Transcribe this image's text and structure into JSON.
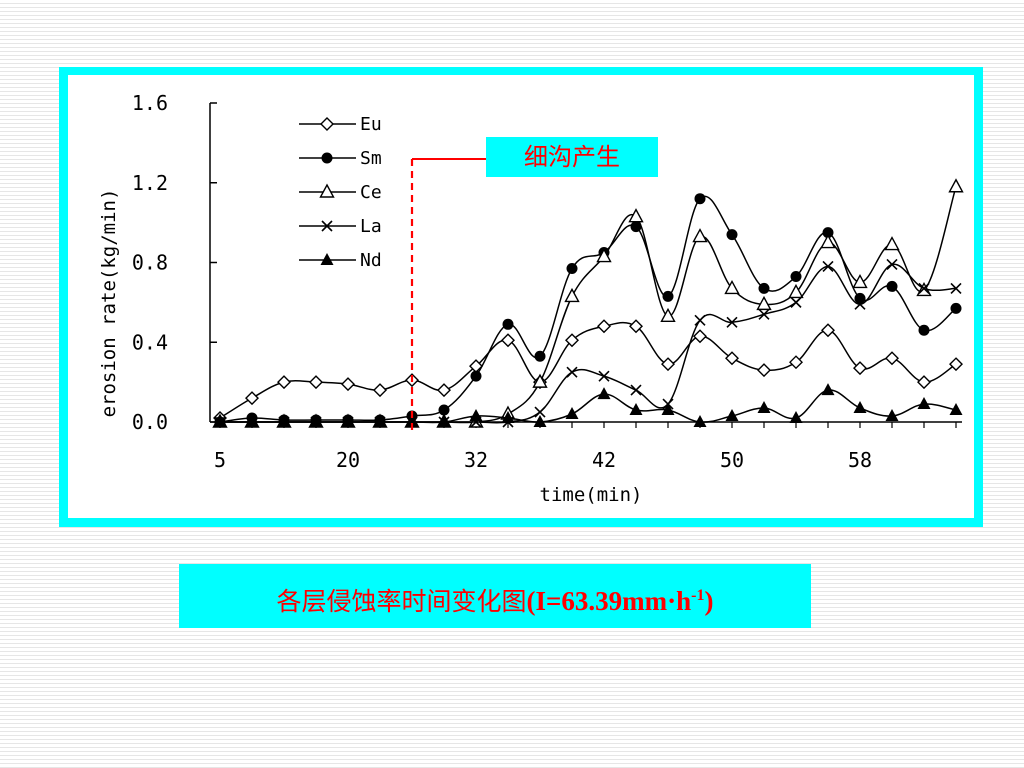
{
  "annotation": {
    "text": "细沟产生",
    "x_marker": 26
  },
  "caption": {
    "prefix": "各层侵蚀率时间变化图",
    "formula_main": "(I=63.39mm·h",
    "formula_sup": "-1",
    "formula_end": ")"
  },
  "colors": {
    "frame": "#00ffff",
    "annotation_text": "#ff0000",
    "marker_line": "#ff0000"
  },
  "chart_data": {
    "type": "line",
    "xlabel": "time(min)",
    "ylabel": "erosion rate(kg/min)",
    "ylim": [
      0,
      1.6
    ],
    "yticks": [
      "0.0",
      "0.4",
      "0.8",
      "1.2",
      "1.6"
    ],
    "xticks": [
      "5",
      "20",
      "32",
      "42",
      "50",
      "58"
    ],
    "grid": false,
    "legend_position": "top-left",
    "x_index_range": [
      1,
      24.5
    ],
    "xtick_positions": [
      1,
      5,
      9,
      13,
      17,
      21
    ],
    "x": [
      1,
      2,
      3,
      4,
      5,
      6,
      7,
      8,
      9,
      10,
      11,
      12,
      13,
      14,
      15,
      16,
      17,
      18,
      19,
      20,
      21,
      22,
      23,
      24
    ],
    "series": [
      {
        "name": "Eu",
        "marker": "diamond",
        "values": [
          0.02,
          0.12,
          0.2,
          0.2,
          0.19,
          0.16,
          0.21,
          0.16,
          0.28,
          0.41,
          0.2,
          0.41,
          0.48,
          0.48,
          0.29,
          0.43,
          0.32,
          0.26,
          0.3,
          0.46,
          0.27,
          0.32,
          0.2,
          0.29
        ]
      },
      {
        "name": "Sm",
        "marker": "circle",
        "values": [
          0.0,
          0.02,
          0.01,
          0.01,
          0.01,
          0.01,
          0.03,
          0.06,
          0.23,
          0.49,
          0.33,
          0.77,
          0.85,
          0.98,
          0.63,
          1.12,
          0.94,
          0.67,
          0.73,
          0.95,
          0.62,
          0.68,
          0.46,
          0.57
        ]
      },
      {
        "name": "Ce",
        "marker": "triangle-open",
        "values": [
          0.0,
          0.0,
          0.0,
          0.0,
          0.0,
          0.0,
          0.0,
          0.0,
          0.0,
          0.04,
          0.2,
          0.63,
          0.83,
          1.03,
          0.53,
          0.93,
          0.67,
          0.59,
          0.65,
          0.9,
          0.7,
          0.89,
          0.66,
          1.18
        ]
      },
      {
        "name": "La",
        "marker": "cross",
        "values": [
          0.0,
          0.0,
          0.0,
          0.0,
          0.0,
          0.0,
          0.0,
          0.0,
          0.0,
          0.0,
          0.05,
          0.25,
          0.23,
          0.16,
          0.09,
          0.51,
          0.5,
          0.54,
          0.6,
          0.78,
          0.59,
          0.79,
          0.67,
          0.67
        ]
      },
      {
        "name": "Nd",
        "marker": "triangle-filled",
        "values": [
          0.0,
          0.0,
          0.0,
          0.0,
          0.0,
          0.0,
          0.0,
          0.0,
          0.03,
          0.02,
          0.0,
          0.04,
          0.14,
          0.06,
          0.06,
          0.0,
          0.03,
          0.07,
          0.02,
          0.16,
          0.07,
          0.03,
          0.09,
          0.06
        ]
      }
    ]
  }
}
